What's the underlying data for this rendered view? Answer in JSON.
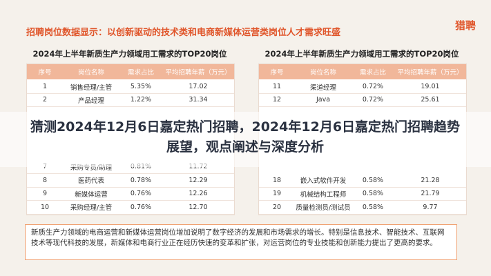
{
  "header": {
    "title": "招聘岗位数据显示：以创新驱动的技术类和电商新媒体运营类岗位人才需求旺盛",
    "logo": "猎聘"
  },
  "tables": [
    {
      "title": "2024年上半年新质生产力领域用工需求的TOP20岗位",
      "columns": [
        "序号",
        "岗位名称",
        "需求占比",
        "平均招聘年薪（万元）"
      ],
      "rows": [
        [
          "1",
          "销售经理/主管",
          "5.35%",
          "17.02"
        ],
        [
          "2",
          "产品经理",
          "1.22%",
          "31.34"
        ],
        [
          "7",
          "采购专员/助理",
          "0.81%",
          "11.72"
        ],
        [
          "8",
          "医药代表",
          "0.78%",
          "12.29"
        ],
        [
          "9",
          "新媒体运营",
          "0.76%",
          "12.26"
        ],
        [
          "10",
          "采购经理/主管",
          "0.76%",
          "12.70"
        ]
      ]
    },
    {
      "title": "2024年上半年新质生产力领域用工需求的TOP20岗位",
      "columns": [
        "序号",
        "岗位名称",
        "需求占比",
        "平均招聘年薪（万元）"
      ],
      "rows": [
        [
          "11",
          "渠道经理",
          "0.72%",
          "19.01"
        ],
        [
          "12",
          "Java",
          "0.72%",
          "25.61"
        ],
        [
          "18",
          "嵌入式软件开发",
          "0.58%",
          "21.28"
        ],
        [
          "19",
          "机械结构工程师",
          "0.58%",
          "21.79"
        ],
        [
          "20",
          "质量检测员/测试员",
          "0.58%",
          "9.77"
        ]
      ]
    }
  ],
  "overlay": {
    "title": "猜测2024年12月6日嘉定热门招聘，2024年12月6日嘉定热门招聘趋势展望，观点阐述与深度分析"
  },
  "footer": {
    "text": "新质生产力领域的电商运营和新媒体运营岗位增加说明了数字经济的发展和市场需求的增长。特别是信息技术、智能技术、互联网技术等现代科技的发展，新媒体和电商行业正在经历快速的变革和扩张，对运营岗位的专业技能和创新能力提出了更高的要求。"
  }
}
